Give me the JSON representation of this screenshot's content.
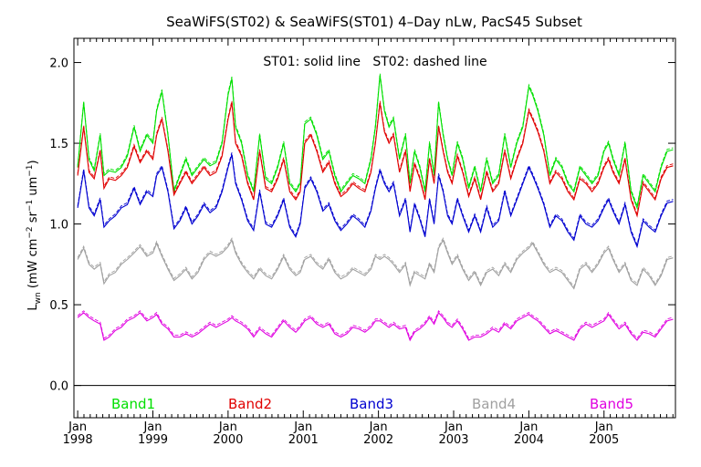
{
  "chart_data": {
    "type": "line",
    "title": "SeaWiFS(ST02) & SeaWiFS(ST01) 4–Day nLw, PacS45 Subset",
    "annotation": "ST01: solid line   ST02: dashed line",
    "ylabel": "L",
    "ylabel_sub": "wn",
    "ylabel_units": " (mW cm",
    "ylabel_sup1": "−2",
    "ylabel_mid": " sr",
    "ylabel_sup2": "−1",
    "ylabel_end": " um",
    "ylabel_sup3": "−1",
    "ylabel_close": ")",
    "ylim": [
      -0.2,
      2.15
    ],
    "yticks": [
      "0.0",
      "0.5",
      "1.0",
      "1.5",
      "2.0"
    ],
    "xlim": [
      1997.95,
      2005.95
    ],
    "xticks_month": "Jan",
    "xticks_year": [
      "1998",
      "1999",
      "2000",
      "2001",
      "2002",
      "2003",
      "2004",
      "2005"
    ],
    "zero_line": true,
    "legend_placement": "bottom-inside",
    "series": [
      {
        "name": "Band1",
        "color": "#00e000",
        "x": [
          1998.0,
          1998.08,
          1998.15,
          1998.22,
          1998.3,
          1998.35,
          1998.42,
          1998.5,
          1998.58,
          1998.66,
          1998.75,
          1998.83,
          1998.92,
          1999.0,
          1999.05,
          1999.12,
          1999.2,
          1999.28,
          1999.36,
          1999.44,
          1999.52,
          1999.6,
          1999.68,
          1999.76,
          1999.84,
          1999.92,
          2000.0,
          2000.05,
          2000.1,
          2000.18,
          2000.26,
          2000.34,
          2000.42,
          2000.5,
          2000.58,
          2000.66,
          2000.74,
          2000.82,
          2000.9,
          2000.96,
          2001.02,
          2001.1,
          2001.18,
          2001.26,
          2001.34,
          2001.42,
          2001.5,
          2001.58,
          2001.66,
          2001.74,
          2001.82,
          2001.9,
          2001.96,
          2002.02,
          2002.08,
          2002.14,
          2002.2,
          2002.28,
          2002.36,
          2002.42,
          2002.48,
          2002.55,
          2002.62,
          2002.68,
          2002.74,
          2002.8,
          2002.86,
          2002.92,
          2002.98,
          2003.05,
          2003.12,
          2003.2,
          2003.28,
          2003.36,
          2003.44,
          2003.52,
          2003.6,
          2003.68,
          2003.76,
          2003.84,
          2003.92,
          2004.0,
          2004.05,
          2004.12,
          2004.2,
          2004.28,
          2004.36,
          2004.44,
          2004.52,
          2004.6,
          2004.68,
          2004.76,
          2004.84,
          2004.92,
          2005.0,
          2005.06,
          2005.12,
          2005.2,
          2005.28,
          2005.36,
          2005.44,
          2005.52,
          2005.6,
          2005.68,
          2005.76,
          2005.84,
          2005.92
        ],
        "y": [
          1.35,
          1.75,
          1.4,
          1.33,
          1.55,
          1.3,
          1.33,
          1.32,
          1.35,
          1.42,
          1.6,
          1.45,
          1.55,
          1.5,
          1.7,
          1.82,
          1.55,
          1.2,
          1.3,
          1.4,
          1.3,
          1.35,
          1.4,
          1.36,
          1.38,
          1.5,
          1.8,
          1.9,
          1.6,
          1.5,
          1.3,
          1.2,
          1.55,
          1.28,
          1.25,
          1.35,
          1.5,
          1.25,
          1.2,
          1.25,
          1.62,
          1.65,
          1.55,
          1.4,
          1.45,
          1.3,
          1.2,
          1.25,
          1.3,
          1.28,
          1.25,
          1.4,
          1.6,
          1.92,
          1.7,
          1.6,
          1.65,
          1.4,
          1.55,
          1.25,
          1.45,
          1.35,
          1.2,
          1.5,
          1.3,
          1.75,
          1.55,
          1.4,
          1.3,
          1.5,
          1.4,
          1.22,
          1.35,
          1.2,
          1.4,
          1.25,
          1.3,
          1.55,
          1.35,
          1.5,
          1.6,
          1.85,
          1.8,
          1.7,
          1.55,
          1.3,
          1.4,
          1.35,
          1.25,
          1.2,
          1.35,
          1.3,
          1.25,
          1.3,
          1.45,
          1.5,
          1.4,
          1.3,
          1.5,
          1.2,
          1.1,
          1.3,
          1.25,
          1.2,
          1.35,
          1.45,
          1.46
        ]
      },
      {
        "name": "Band2",
        "color": "#e00000",
        "x": [
          1998.0,
          1998.08,
          1998.15,
          1998.22,
          1998.3,
          1998.35,
          1998.42,
          1998.5,
          1998.58,
          1998.66,
          1998.75,
          1998.83,
          1998.92,
          1999.0,
          1999.05,
          1999.12,
          1999.2,
          1999.28,
          1999.36,
          1999.44,
          1999.52,
          1999.6,
          1999.68,
          1999.76,
          1999.84,
          1999.92,
          2000.0,
          2000.05,
          2000.1,
          2000.18,
          2000.26,
          2000.34,
          2000.42,
          2000.5,
          2000.58,
          2000.66,
          2000.74,
          2000.82,
          2000.9,
          2000.96,
          2001.02,
          2001.1,
          2001.18,
          2001.26,
          2001.34,
          2001.42,
          2001.5,
          2001.58,
          2001.66,
          2001.74,
          2001.82,
          2001.9,
          2001.96,
          2002.02,
          2002.08,
          2002.14,
          2002.2,
          2002.28,
          2002.36,
          2002.42,
          2002.48,
          2002.55,
          2002.62,
          2002.68,
          2002.74,
          2002.8,
          2002.86,
          2002.92,
          2002.98,
          2003.05,
          2003.12,
          2003.2,
          2003.28,
          2003.36,
          2003.44,
          2003.52,
          2003.6,
          2003.68,
          2003.76,
          2003.84,
          2003.92,
          2004.0,
          2004.05,
          2004.12,
          2004.2,
          2004.28,
          2004.36,
          2004.44,
          2004.52,
          2004.6,
          2004.68,
          2004.76,
          2004.84,
          2004.92,
          2005.0,
          2005.06,
          2005.12,
          2005.2,
          2005.28,
          2005.36,
          2005.44,
          2005.52,
          2005.6,
          2005.68,
          2005.76,
          2005.84,
          2005.92
        ],
        "y": [
          1.3,
          1.6,
          1.32,
          1.28,
          1.45,
          1.22,
          1.28,
          1.27,
          1.3,
          1.35,
          1.48,
          1.38,
          1.45,
          1.4,
          1.55,
          1.65,
          1.45,
          1.18,
          1.25,
          1.32,
          1.25,
          1.3,
          1.35,
          1.3,
          1.32,
          1.42,
          1.65,
          1.75,
          1.5,
          1.42,
          1.25,
          1.15,
          1.45,
          1.22,
          1.2,
          1.28,
          1.4,
          1.2,
          1.15,
          1.2,
          1.5,
          1.55,
          1.45,
          1.32,
          1.38,
          1.25,
          1.17,
          1.2,
          1.25,
          1.22,
          1.2,
          1.32,
          1.5,
          1.75,
          1.57,
          1.5,
          1.55,
          1.32,
          1.45,
          1.2,
          1.37,
          1.28,
          1.15,
          1.4,
          1.25,
          1.6,
          1.45,
          1.32,
          1.25,
          1.42,
          1.32,
          1.17,
          1.28,
          1.15,
          1.32,
          1.2,
          1.25,
          1.45,
          1.28,
          1.4,
          1.5,
          1.7,
          1.65,
          1.57,
          1.45,
          1.25,
          1.32,
          1.28,
          1.2,
          1.15,
          1.28,
          1.25,
          1.2,
          1.25,
          1.35,
          1.4,
          1.32,
          1.25,
          1.4,
          1.15,
          1.05,
          1.25,
          1.2,
          1.15,
          1.28,
          1.35,
          1.36
        ]
      },
      {
        "name": "Band3",
        "color": "#0000d0",
        "x": [
          1998.0,
          1998.08,
          1998.15,
          1998.22,
          1998.3,
          1998.35,
          1998.42,
          1998.5,
          1998.58,
          1998.66,
          1998.75,
          1998.83,
          1998.92,
          1999.0,
          1999.05,
          1999.12,
          1999.2,
          1999.28,
          1999.36,
          1999.44,
          1999.52,
          1999.6,
          1999.68,
          1999.76,
          1999.84,
          1999.92,
          2000.0,
          2000.05,
          2000.1,
          2000.18,
          2000.26,
          2000.34,
          2000.42,
          2000.5,
          2000.58,
          2000.66,
          2000.74,
          2000.82,
          2000.9,
          2000.96,
          2001.02,
          2001.1,
          2001.18,
          2001.26,
          2001.34,
          2001.42,
          2001.5,
          2001.58,
          2001.66,
          2001.74,
          2001.82,
          2001.9,
          2001.96,
          2002.02,
          2002.08,
          2002.14,
          2002.2,
          2002.28,
          2002.36,
          2002.42,
          2002.48,
          2002.55,
          2002.62,
          2002.68,
          2002.74,
          2002.8,
          2002.86,
          2002.92,
          2002.98,
          2003.05,
          2003.12,
          2003.2,
          2003.28,
          2003.36,
          2003.44,
          2003.52,
          2003.6,
          2003.68,
          2003.76,
          2003.84,
          2003.92,
          2004.0,
          2004.05,
          2004.12,
          2004.2,
          2004.28,
          2004.36,
          2004.44,
          2004.52,
          2004.6,
          2004.68,
          2004.76,
          2004.84,
          2004.92,
          2005.0,
          2005.06,
          2005.12,
          2005.2,
          2005.28,
          2005.36,
          2005.44,
          2005.52,
          2005.6,
          2005.68,
          2005.76,
          2005.84,
          2005.92
        ],
        "y": [
          1.1,
          1.33,
          1.1,
          1.05,
          1.15,
          0.98,
          1.02,
          1.05,
          1.1,
          1.12,
          1.22,
          1.12,
          1.2,
          1.17,
          1.3,
          1.35,
          1.2,
          0.97,
          1.02,
          1.1,
          1.0,
          1.05,
          1.12,
          1.07,
          1.1,
          1.2,
          1.35,
          1.43,
          1.25,
          1.15,
          1.02,
          0.96,
          1.2,
          1.0,
          0.98,
          1.05,
          1.15,
          0.98,
          0.92,
          1.0,
          1.22,
          1.28,
          1.2,
          1.08,
          1.12,
          1.02,
          0.96,
          1.0,
          1.05,
          1.02,
          0.98,
          1.08,
          1.22,
          1.33,
          1.25,
          1.2,
          1.25,
          1.05,
          1.15,
          0.95,
          1.12,
          1.03,
          0.92,
          1.15,
          1.0,
          1.3,
          1.2,
          1.05,
          1.0,
          1.15,
          1.05,
          0.95,
          1.05,
          0.95,
          1.1,
          0.98,
          1.02,
          1.2,
          1.05,
          1.15,
          1.25,
          1.35,
          1.3,
          1.22,
          1.12,
          0.98,
          1.05,
          1.02,
          0.95,
          0.9,
          1.05,
          1.0,
          0.98,
          1.02,
          1.1,
          1.15,
          1.08,
          1.0,
          1.12,
          0.95,
          0.86,
          1.02,
          0.98,
          0.95,
          1.05,
          1.13,
          1.14
        ]
      },
      {
        "name": "Band4",
        "color": "#a0a0a0",
        "x": [
          1998.0,
          1998.08,
          1998.15,
          1998.22,
          1998.3,
          1998.35,
          1998.42,
          1998.5,
          1998.58,
          1998.66,
          1998.75,
          1998.83,
          1998.92,
          1999.0,
          1999.05,
          1999.12,
          1999.2,
          1999.28,
          1999.36,
          1999.44,
          1999.52,
          1999.6,
          1999.68,
          1999.76,
          1999.84,
          1999.92,
          2000.0,
          2000.05,
          2000.1,
          2000.18,
          2000.26,
          2000.34,
          2000.42,
          2000.5,
          2000.58,
          2000.66,
          2000.74,
          2000.82,
          2000.9,
          2000.96,
          2001.02,
          2001.1,
          2001.18,
          2001.26,
          2001.34,
          2001.42,
          2001.5,
          2001.58,
          2001.66,
          2001.74,
          2001.82,
          2001.9,
          2001.96,
          2002.02,
          2002.08,
          2002.14,
          2002.2,
          2002.28,
          2002.36,
          2002.42,
          2002.48,
          2002.55,
          2002.62,
          2002.68,
          2002.74,
          2002.8,
          2002.86,
          2002.92,
          2002.98,
          2003.05,
          2003.12,
          2003.2,
          2003.28,
          2003.36,
          2003.44,
          2003.52,
          2003.6,
          2003.68,
          2003.76,
          2003.84,
          2003.92,
          2004.0,
          2004.05,
          2004.12,
          2004.2,
          2004.28,
          2004.36,
          2004.44,
          2004.52,
          2004.6,
          2004.68,
          2004.76,
          2004.84,
          2004.92,
          2005.0,
          2005.06,
          2005.12,
          2005.2,
          2005.28,
          2005.36,
          2005.44,
          2005.52,
          2005.6,
          2005.68,
          2005.76,
          2005.84,
          2005.92
        ],
        "y": [
          0.78,
          0.85,
          0.75,
          0.72,
          0.75,
          0.63,
          0.68,
          0.7,
          0.75,
          0.78,
          0.82,
          0.86,
          0.8,
          0.82,
          0.88,
          0.8,
          0.72,
          0.65,
          0.68,
          0.72,
          0.66,
          0.7,
          0.78,
          0.82,
          0.8,
          0.82,
          0.86,
          0.9,
          0.82,
          0.75,
          0.7,
          0.66,
          0.72,
          0.68,
          0.66,
          0.72,
          0.8,
          0.72,
          0.68,
          0.7,
          0.78,
          0.8,
          0.75,
          0.72,
          0.78,
          0.7,
          0.66,
          0.68,
          0.72,
          0.7,
          0.68,
          0.72,
          0.8,
          0.78,
          0.8,
          0.78,
          0.75,
          0.7,
          0.75,
          0.62,
          0.7,
          0.68,
          0.66,
          0.75,
          0.7,
          0.85,
          0.9,
          0.82,
          0.75,
          0.8,
          0.72,
          0.65,
          0.7,
          0.62,
          0.7,
          0.72,
          0.68,
          0.75,
          0.7,
          0.78,
          0.82,
          0.85,
          0.88,
          0.82,
          0.75,
          0.7,
          0.72,
          0.7,
          0.65,
          0.6,
          0.72,
          0.75,
          0.7,
          0.75,
          0.82,
          0.85,
          0.78,
          0.7,
          0.75,
          0.65,
          0.62,
          0.72,
          0.68,
          0.62,
          0.68,
          0.78,
          0.79
        ]
      },
      {
        "name": "Band5",
        "color": "#e000e0",
        "x": [
          1998.0,
          1998.08,
          1998.15,
          1998.22,
          1998.3,
          1998.35,
          1998.42,
          1998.5,
          1998.58,
          1998.66,
          1998.75,
          1998.83,
          1998.92,
          1999.0,
          1999.05,
          1999.12,
          1999.2,
          1999.28,
          1999.36,
          1999.44,
          1999.52,
          1999.6,
          1999.68,
          1999.76,
          1999.84,
          1999.92,
          2000.0,
          2000.05,
          2000.1,
          2000.18,
          2000.26,
          2000.34,
          2000.42,
          2000.5,
          2000.58,
          2000.66,
          2000.74,
          2000.82,
          2000.9,
          2000.96,
          2001.02,
          2001.1,
          2001.18,
          2001.26,
          2001.34,
          2001.42,
          2001.5,
          2001.58,
          2001.66,
          2001.74,
          2001.82,
          2001.9,
          2001.96,
          2002.02,
          2002.08,
          2002.14,
          2002.2,
          2002.28,
          2002.36,
          2002.42,
          2002.48,
          2002.55,
          2002.62,
          2002.68,
          2002.74,
          2002.8,
          2002.86,
          2002.92,
          2002.98,
          2003.05,
          2003.12,
          2003.2,
          2003.28,
          2003.36,
          2003.44,
          2003.52,
          2003.6,
          2003.68,
          2003.76,
          2003.84,
          2003.92,
          2004.0,
          2004.05,
          2004.12,
          2004.2,
          2004.28,
          2004.36,
          2004.44,
          2004.52,
          2004.6,
          2004.68,
          2004.76,
          2004.84,
          2004.92,
          2005.0,
          2005.06,
          2005.12,
          2005.2,
          2005.28,
          2005.36,
          2005.44,
          2005.52,
          2005.6,
          2005.68,
          2005.76,
          2005.84,
          2005.92
        ],
        "y": [
          0.42,
          0.45,
          0.42,
          0.4,
          0.38,
          0.28,
          0.3,
          0.34,
          0.36,
          0.4,
          0.42,
          0.45,
          0.4,
          0.42,
          0.44,
          0.38,
          0.35,
          0.3,
          0.3,
          0.32,
          0.3,
          0.32,
          0.35,
          0.38,
          0.36,
          0.38,
          0.4,
          0.42,
          0.4,
          0.38,
          0.35,
          0.3,
          0.35,
          0.32,
          0.3,
          0.35,
          0.4,
          0.36,
          0.33,
          0.36,
          0.4,
          0.42,
          0.38,
          0.36,
          0.38,
          0.32,
          0.3,
          0.32,
          0.36,
          0.35,
          0.33,
          0.36,
          0.4,
          0.4,
          0.38,
          0.36,
          0.38,
          0.35,
          0.36,
          0.28,
          0.33,
          0.35,
          0.38,
          0.42,
          0.38,
          0.45,
          0.42,
          0.38,
          0.36,
          0.4,
          0.35,
          0.28,
          0.3,
          0.3,
          0.32,
          0.35,
          0.33,
          0.38,
          0.35,
          0.4,
          0.42,
          0.44,
          0.42,
          0.4,
          0.36,
          0.32,
          0.34,
          0.32,
          0.3,
          0.28,
          0.35,
          0.38,
          0.36,
          0.38,
          0.4,
          0.44,
          0.4,
          0.35,
          0.38,
          0.32,
          0.28,
          0.33,
          0.32,
          0.3,
          0.35,
          0.4,
          0.41
        ]
      }
    ]
  }
}
